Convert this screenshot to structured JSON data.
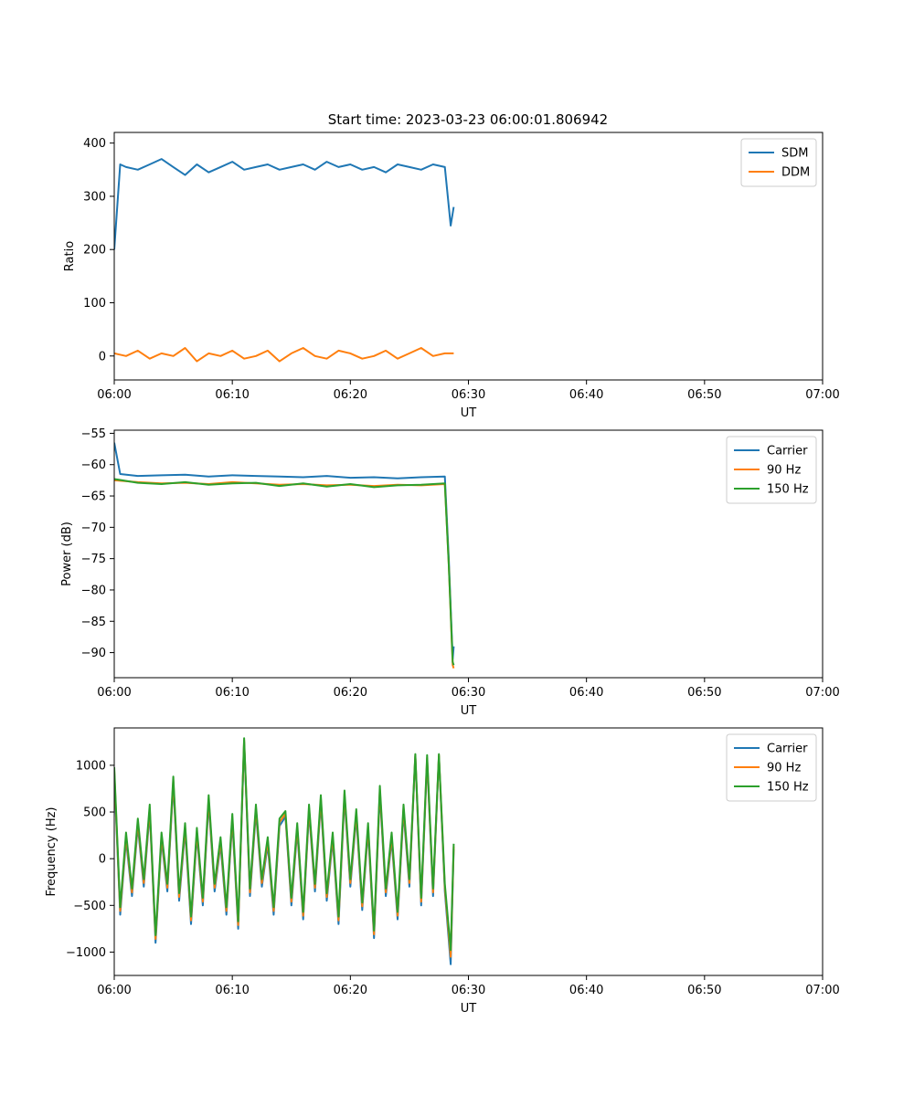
{
  "title": "Start time: 2023-03-23 06:00:01.806942",
  "chart_data": [
    {
      "type": "line",
      "xlabel": "UT",
      "ylabel": "Ratio",
      "xlim": [
        "06:00",
        "07:00"
      ],
      "ylim": [
        -45,
        420
      ],
      "xticks": [
        "06:00",
        "06:10",
        "06:20",
        "06:30",
        "06:40",
        "06:50",
        "07:00"
      ],
      "yticks": [
        0,
        100,
        200,
        300,
        400
      ],
      "grid": false,
      "legend": "top-right",
      "series": [
        {
          "name": "SDM",
          "color": "#1f77b4",
          "x": [
            "06:00",
            "06:00:30",
            "06:01",
            "06:02",
            "06:03",
            "06:04",
            "06:05",
            "06:06",
            "06:07",
            "06:08",
            "06:09",
            "06:10",
            "06:11",
            "06:12",
            "06:13",
            "06:14",
            "06:15",
            "06:16",
            "06:17",
            "06:18",
            "06:19",
            "06:20",
            "06:21",
            "06:22",
            "06:23",
            "06:24",
            "06:25",
            "06:26",
            "06:27",
            "06:28",
            "06:28:30",
            "06:28:45"
          ],
          "y": [
            200,
            360,
            355,
            350,
            360,
            370,
            355,
            340,
            360,
            345,
            355,
            365,
            350,
            355,
            360,
            350,
            355,
            360,
            350,
            365,
            355,
            360,
            350,
            355,
            345,
            360,
            355,
            350,
            360,
            355,
            245,
            280
          ]
        },
        {
          "name": "DDM",
          "color": "#ff7f0e",
          "x": [
            "06:00",
            "06:01",
            "06:02",
            "06:03",
            "06:04",
            "06:05",
            "06:06",
            "06:07",
            "06:08",
            "06:09",
            "06:10",
            "06:11",
            "06:12",
            "06:13",
            "06:14",
            "06:15",
            "06:16",
            "06:17",
            "06:18",
            "06:19",
            "06:20",
            "06:21",
            "06:22",
            "06:23",
            "06:24",
            "06:25",
            "06:26",
            "06:27",
            "06:28",
            "06:28:45"
          ],
          "y": [
            5,
            0,
            10,
            -5,
            5,
            0,
            15,
            -10,
            5,
            0,
            10,
            -5,
            0,
            10,
            -10,
            5,
            15,
            0,
            -5,
            10,
            5,
            -5,
            0,
            10,
            -5,
            5,
            15,
            0,
            5,
            5
          ]
        }
      ]
    },
    {
      "type": "line",
      "xlabel": "UT",
      "ylabel": "Power (dB)",
      "xlim": [
        "06:00",
        "07:00"
      ],
      "ylim": [
        -94,
        -54.5
      ],
      "xticks": [
        "06:00",
        "06:10",
        "06:20",
        "06:30",
        "06:40",
        "06:50",
        "07:00"
      ],
      "yticks": [
        -55,
        -60,
        -65,
        -70,
        -75,
        -80,
        -85,
        -90
      ],
      "grid": false,
      "legend": "top-right",
      "series": [
        {
          "name": "Carrier",
          "color": "#1f77b4",
          "x": [
            "06:00",
            "06:00:30",
            "06:02",
            "06:04",
            "06:06",
            "06:08",
            "06:10",
            "06:12",
            "06:14",
            "06:16",
            "06:18",
            "06:20",
            "06:22",
            "06:24",
            "06:26",
            "06:28",
            "06:28:20",
            "06:28:40",
            "06:28:45"
          ],
          "y": [
            -56.5,
            -61.5,
            -61.8,
            -61.7,
            -61.6,
            -61.9,
            -61.7,
            -61.8,
            -61.9,
            -62.0,
            -61.8,
            -62.1,
            -62.0,
            -62.2,
            -62.0,
            -61.9,
            -75,
            -91,
            -89
          ]
        },
        {
          "name": "90 Hz",
          "color": "#ff7f0e",
          "x": [
            "06:00",
            "06:02",
            "06:04",
            "06:06",
            "06:08",
            "06:10",
            "06:12",
            "06:14",
            "06:16",
            "06:18",
            "06:20",
            "06:22",
            "06:24",
            "06:26",
            "06:28",
            "06:28:20",
            "06:28:40",
            "06:28:45"
          ],
          "y": [
            -62.5,
            -62.8,
            -63.0,
            -62.9,
            -63.1,
            -62.8,
            -63.0,
            -63.2,
            -63.1,
            -63.3,
            -63.2,
            -63.4,
            -63.2,
            -63.3,
            -63.1,
            -76,
            -92,
            -92.5
          ]
        },
        {
          "name": "150 Hz",
          "color": "#2ca02c",
          "x": [
            "06:00",
            "06:02",
            "06:04",
            "06:06",
            "06:08",
            "06:10",
            "06:12",
            "06:14",
            "06:16",
            "06:18",
            "06:20",
            "06:22",
            "06:24",
            "06:26",
            "06:28",
            "06:28:20",
            "06:28:40",
            "06:28:45"
          ],
          "y": [
            -62.3,
            -62.9,
            -63.1,
            -62.8,
            -63.2,
            -63.0,
            -62.9,
            -63.4,
            -63.0,
            -63.5,
            -63.1,
            -63.6,
            -63.3,
            -63.2,
            -63.0,
            -76,
            -91.5,
            -92
          ]
        }
      ]
    },
    {
      "type": "line",
      "xlabel": "UT",
      "ylabel": "Frequency (Hz)",
      "xlim": [
        "06:00",
        "07:00"
      ],
      "ylim": [
        -1250,
        1400
      ],
      "xticks": [
        "06:00",
        "06:10",
        "06:20",
        "06:30",
        "06:40",
        "06:50",
        "07:00"
      ],
      "yticks": [
        1000,
        500,
        0,
        -500,
        -1000
      ],
      "grid": false,
      "legend": "top-right",
      "series": [
        {
          "name": "Carrier",
          "color": "#1f77b4",
          "x": [
            "06:00",
            "06:00:30",
            "06:01",
            "06:01:30",
            "06:02",
            "06:02:30",
            "06:03",
            "06:03:30",
            "06:04",
            "06:04:30",
            "06:05",
            "06:05:30",
            "06:06",
            "06:06:30",
            "06:07",
            "06:07:30",
            "06:08",
            "06:08:30",
            "06:09",
            "06:09:30",
            "06:10",
            "06:10:30",
            "06:11",
            "06:11:30",
            "06:12",
            "06:12:30",
            "06:13",
            "06:13:30",
            "06:14",
            "06:14:30",
            "06:15",
            "06:15:30",
            "06:16",
            "06:16:30",
            "06:17",
            "06:17:30",
            "06:18",
            "06:18:30",
            "06:19",
            "06:19:30",
            "06:20",
            "06:20:30",
            "06:21",
            "06:21:30",
            "06:22",
            "06:22:30",
            "06:23",
            "06:23:30",
            "06:24",
            "06:24:30",
            "06:25",
            "06:25:30",
            "06:26",
            "06:26:30",
            "06:27",
            "06:27:30",
            "06:28",
            "06:28:30",
            "06:28:45"
          ],
          "y": [
            900,
            -600,
            200,
            -400,
            350,
            -300,
            500,
            -900,
            200,
            -350,
            800,
            -450,
            300,
            -700,
            250,
            -500,
            600,
            -350,
            150,
            -600,
            400,
            -750,
            1250,
            -400,
            500,
            -300,
            150,
            -600,
            350,
            450,
            -500,
            300,
            -650,
            500,
            -350,
            600,
            -450,
            200,
            -700,
            650,
            -300,
            450,
            -550,
            300,
            -850,
            700,
            -400,
            200,
            -650,
            500,
            -300,
            1100,
            -500,
            1050,
            -400,
            1100,
            -350,
            -1130,
            100
          ]
        },
        {
          "name": "90 Hz",
          "color": "#ff7f0e",
          "x": [
            "06:00",
            "06:00:30",
            "06:01",
            "06:01:30",
            "06:02",
            "06:02:30",
            "06:03",
            "06:03:30",
            "06:04",
            "06:04:30",
            "06:05",
            "06:05:30",
            "06:06",
            "06:06:30",
            "06:07",
            "06:07:30",
            "06:08",
            "06:08:30",
            "06:09",
            "06:09:30",
            "06:10",
            "06:10:30",
            "06:11",
            "06:11:30",
            "06:12",
            "06:12:30",
            "06:13",
            "06:13:30",
            "06:14",
            "06:14:30",
            "06:15",
            "06:15:30",
            "06:16",
            "06:16:30",
            "06:17",
            "06:17:30",
            "06:18",
            "06:18:30",
            "06:19",
            "06:19:30",
            "06:20",
            "06:20:30",
            "06:21",
            "06:21:30",
            "06:22",
            "06:22:30",
            "06:23",
            "06:23:30",
            "06:24",
            "06:24:30",
            "06:25",
            "06:25:30",
            "06:26",
            "06:26:30",
            "06:27",
            "06:27:30",
            "06:28",
            "06:28:30",
            "06:28:45"
          ],
          "y": [
            940,
            -560,
            240,
            -360,
            390,
            -260,
            540,
            -860,
            240,
            -310,
            840,
            -410,
            340,
            -660,
            290,
            -460,
            640,
            -310,
            190,
            -560,
            440,
            -710,
            1270,
            -360,
            540,
            -260,
            190,
            -560,
            390,
            480,
            -460,
            340,
            -610,
            540,
            -310,
            640,
            -410,
            240,
            -660,
            690,
            -260,
            490,
            -510,
            340,
            -810,
            740,
            -360,
            240,
            -610,
            540,
            -260,
            1110,
            -460,
            1080,
            -360,
            1110,
            -310,
            -1050,
            130
          ]
        },
        {
          "name": "150 Hz",
          "color": "#2ca02c",
          "x": [
            "06:00",
            "06:00:30",
            "06:01",
            "06:01:30",
            "06:02",
            "06:02:30",
            "06:03",
            "06:03:30",
            "06:04",
            "06:04:30",
            "06:05",
            "06:05:30",
            "06:06",
            "06:06:30",
            "06:07",
            "06:07:30",
            "06:08",
            "06:08:30",
            "06:09",
            "06:09:30",
            "06:10",
            "06:10:30",
            "06:11",
            "06:11:30",
            "06:12",
            "06:12:30",
            "06:13",
            "06:13:30",
            "06:14",
            "06:14:30",
            "06:15",
            "06:15:30",
            "06:16",
            "06:16:30",
            "06:17",
            "06:17:30",
            "06:18",
            "06:18:30",
            "06:19",
            "06:19:30",
            "06:20",
            "06:20:30",
            "06:21",
            "06:21:30",
            "06:22",
            "06:22:30",
            "06:23",
            "06:23:30",
            "06:24",
            "06:24:30",
            "06:25",
            "06:25:30",
            "06:26",
            "06:26:30",
            "06:27",
            "06:27:30",
            "06:28",
            "06:28:30",
            "06:28:45"
          ],
          "y": [
            980,
            -520,
            280,
            -320,
            430,
            -220,
            580,
            -820,
            280,
            -270,
            880,
            -370,
            380,
            -620,
            330,
            -420,
            680,
            -270,
            230,
            -520,
            480,
            -670,
            1290,
            -320,
            580,
            -220,
            230,
            -520,
            430,
            510,
            -420,
            380,
            -570,
            580,
            -270,
            680,
            -370,
            280,
            -620,
            730,
            -220,
            530,
            -470,
            380,
            -770,
            780,
            -320,
            280,
            -570,
            580,
            -220,
            1120,
            -420,
            1110,
            -320,
            1120,
            -270,
            -980,
            160
          ]
        }
      ]
    }
  ]
}
